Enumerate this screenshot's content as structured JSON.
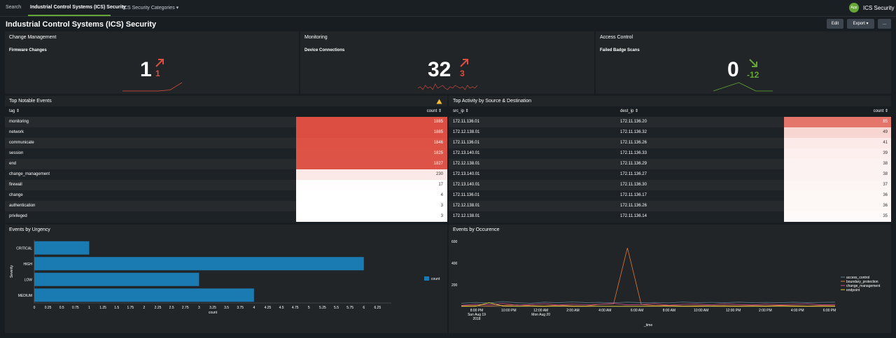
{
  "nav": {
    "search": "Search",
    "dashboard": "Industrial Control Systems (ICS) Security",
    "categories": "ICS Security Categories ▾"
  },
  "app": {
    "icon_label": "App",
    "name": "ICS Security"
  },
  "page": {
    "title": "Industrial Control Systems (ICS) Security",
    "edit_label": "Edit",
    "export_label": "Export ▾",
    "more_label": "..."
  },
  "cards": [
    {
      "title": "Change Management",
      "subtitle": "Firmware Changes",
      "value": "1",
      "delta": "1",
      "direction": "up",
      "delta_color": "#dc4e41",
      "spark": [
        2,
        2,
        2,
        2,
        3,
        10
      ]
    },
    {
      "title": "Monitoring",
      "subtitle": "Device Connections",
      "value": "32",
      "delta": "3",
      "direction": "up",
      "delta_color": "#dc4e41",
      "spark": [
        4,
        5,
        3,
        6,
        4,
        5,
        3,
        7,
        4,
        5,
        6,
        4,
        3,
        5,
        4,
        6,
        5,
        4,
        5,
        3,
        6,
        4,
        5,
        4,
        6
      ]
    },
    {
      "title": "Access Control",
      "subtitle": "Failed Badge Scans",
      "value": "0",
      "delta": "-12",
      "direction": "down",
      "delta_color": "#65a637",
      "spark": [
        2,
        4,
        6,
        8,
        5,
        2,
        2,
        2
      ]
    }
  ],
  "notable": {
    "title": "Top Notable Events",
    "headers": [
      "tag ⇕",
      "count ⇕"
    ],
    "rows": [
      {
        "tag": "monitoring",
        "count": "1885",
        "v": 1885
      },
      {
        "tag": "network",
        "count": "1885",
        "v": 1885
      },
      {
        "tag": "communicate",
        "count": "1846",
        "v": 1846
      },
      {
        "tag": "session",
        "count": "1825",
        "v": 1825
      },
      {
        "tag": "end",
        "count": "1827",
        "v": 1827
      },
      {
        "tag": "change_management",
        "count": "230",
        "v": 230
      },
      {
        "tag": "firewall",
        "count": "17",
        "v": 17
      },
      {
        "tag": "change",
        "count": "4",
        "v": 4
      },
      {
        "tag": "authentication",
        "count": "3",
        "v": 3
      },
      {
        "tag": "privileged",
        "count": "3",
        "v": 3
      }
    ]
  },
  "activity": {
    "title": "Top Activity by Source & Destination",
    "headers": [
      "src_ip ⇕",
      "dest_ip ⇕",
      "count ⇕"
    ],
    "rows": [
      {
        "src": "172.11.136.01",
        "dest": "172.11.136.20",
        "count": "85",
        "v": 85
      },
      {
        "src": "172.12.138.01",
        "dest": "172.11.136.32",
        "count": "49",
        "v": 49
      },
      {
        "src": "172.11.136.01",
        "dest": "172.11.136.26",
        "count": "41",
        "v": 41
      },
      {
        "src": "172.13.140.01",
        "dest": "172.11.136.33",
        "count": "39",
        "v": 39
      },
      {
        "src": "172.12.138.01",
        "dest": "172.11.136.29",
        "count": "38",
        "v": 38
      },
      {
        "src": "172.13.140.01",
        "dest": "172.11.136.27",
        "count": "38",
        "v": 38
      },
      {
        "src": "172.13.140.01",
        "dest": "172.11.136.30",
        "count": "37",
        "v": 37
      },
      {
        "src": "172.11.136.01",
        "dest": "172.11.136.17",
        "count": "36",
        "v": 36
      },
      {
        "src": "172.12.138.01",
        "dest": "172.11.136.26",
        "count": "36",
        "v": 36
      },
      {
        "src": "172.12.138.01",
        "dest": "172.11.136.14",
        "count": "35",
        "v": 35
      }
    ]
  },
  "chart_data": [
    {
      "type": "bar",
      "orientation": "horizontal",
      "title": "Events by Urgency",
      "xlabel": "count",
      "ylabel": "Severity",
      "categories": [
        "CRITICAL",
        "HIGH",
        "LOW",
        "MEDIUM"
      ],
      "series": [
        {
          "name": "count",
          "values": [
            1,
            6,
            3,
            4
          ],
          "color": "#1a7bb2"
        }
      ],
      "xlim": [
        0,
        6.5
      ],
      "xticks": [
        "0",
        "0.25",
        "0.5",
        "0.75",
        "1",
        "1.25",
        "1.5",
        "1.75",
        "2",
        "2.25",
        "2.5",
        "2.75",
        "3",
        "3.25",
        "3.5",
        "3.75",
        "4",
        "4.25",
        "4.5",
        "4.75",
        "5",
        "5.25",
        "5.5",
        "5.75",
        "6",
        "6.25"
      ],
      "legend": "right"
    },
    {
      "type": "line",
      "title": "Events by Occurence",
      "xlabel": "_time",
      "ylim": [
        0,
        600
      ],
      "yticks": [
        "600",
        "400",
        "200"
      ],
      "xticks": [
        {
          "l1": "8:00 PM",
          "l2": "Sun Aug 19",
          "l3": "2018"
        },
        {
          "l1": "10:00 PM",
          "l2": "",
          "l3": ""
        },
        {
          "l1": "12:00 AM",
          "l2": "Mon Aug 20",
          "l3": ""
        },
        {
          "l1": "2:00 AM",
          "l2": "",
          "l3": ""
        },
        {
          "l1": "4:00 AM",
          "l2": "",
          "l3": ""
        },
        {
          "l1": "6:00 AM",
          "l2": "",
          "l3": ""
        },
        {
          "l1": "8:00 AM",
          "l2": "",
          "l3": ""
        },
        {
          "l1": "10:00 AM",
          "l2": "",
          "l3": ""
        },
        {
          "l1": "12:00 PM",
          "l2": "",
          "l3": ""
        },
        {
          "l1": "2:00 PM",
          "l2": "",
          "l3": ""
        },
        {
          "l1": "4:00 PM",
          "l2": "",
          "l3": ""
        },
        {
          "l1": "6:00 PM",
          "l2": "",
          "l3": ""
        }
      ],
      "series": [
        {
          "name": "access_control",
          "color": "#5c7a8a",
          "values": [
            30,
            38,
            32,
            45,
            35,
            30,
            40,
            35,
            42,
            36,
            38,
            34,
            40,
            35,
            37,
            33,
            41,
            36,
            38,
            35,
            40,
            36,
            38,
            35,
            39,
            36,
            38,
            40
          ]
        },
        {
          "name": "boundary_protection",
          "color": "#e07a3a",
          "values": [
            5,
            8,
            3,
            10,
            15,
            8,
            5,
            12,
            6,
            4,
            20,
            25,
            540,
            18,
            8,
            10,
            5,
            7,
            6,
            9,
            5,
            8,
            6,
            10,
            7,
            5,
            8,
            6
          ]
        },
        {
          "name": "change_management",
          "color": "#d94e8c",
          "values": [
            10,
            20,
            15,
            28,
            12,
            18,
            25,
            14,
            22,
            16,
            20,
            28,
            15,
            18,
            26,
            12,
            20,
            22,
            15,
            24,
            18,
            14,
            22,
            16,
            20,
            25,
            15,
            18
          ]
        },
        {
          "name": "endpoint",
          "color": "#e8d43a",
          "values": [
            2,
            2,
            35,
            5,
            2,
            3,
            2,
            4,
            2,
            2,
            3,
            2,
            2,
            2,
            3,
            2,
            2,
            2,
            3,
            2,
            2,
            2,
            2,
            3,
            2,
            2,
            2,
            2
          ]
        }
      ],
      "legend": "right"
    }
  ]
}
